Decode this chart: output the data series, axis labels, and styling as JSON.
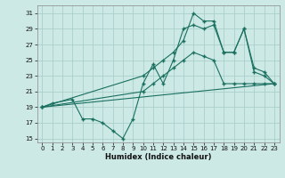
{
  "xlabel": "Humidex (Indice chaleur)",
  "bg_color": "#cce9e5",
  "grid_color": "#aacfcb",
  "line_color": "#1a7060",
  "xlim": [
    -0.5,
    23.5
  ],
  "ylim": [
    14.5,
    32
  ],
  "yticks": [
    15,
    17,
    19,
    21,
    23,
    25,
    27,
    29,
    31
  ],
  "xticks": [
    0,
    1,
    2,
    3,
    4,
    5,
    6,
    7,
    8,
    9,
    10,
    11,
    12,
    13,
    14,
    15,
    16,
    17,
    18,
    19,
    20,
    21,
    22,
    23
  ],
  "series1_x": [
    0,
    1,
    3,
    4,
    5,
    6,
    7,
    8,
    9,
    10,
    11,
    12,
    13,
    14,
    15,
    16,
    17,
    18,
    19,
    20,
    21,
    22,
    23
  ],
  "series1_y": [
    19,
    19.5,
    20,
    17.5,
    17.5,
    17,
    16,
    15,
    17.5,
    22,
    24.5,
    22,
    25,
    29,
    29.5,
    29,
    29.5,
    26,
    26,
    29,
    23.5,
    23,
    22
  ],
  "series2_x": [
    0,
    10,
    11,
    12,
    13,
    14,
    15,
    16,
    17,
    18,
    19,
    20,
    21,
    22,
    23
  ],
  "series2_y": [
    19,
    23,
    24,
    25,
    26,
    27.5,
    31,
    30,
    30,
    26,
    26,
    29,
    24,
    23.5,
    22
  ],
  "series3_x": [
    0,
    10,
    11,
    12,
    13,
    14,
    15,
    16,
    17,
    18,
    19,
    20,
    21,
    22,
    23
  ],
  "series3_y": [
    19,
    21,
    22,
    23,
    24,
    25,
    26,
    25.5,
    25,
    22,
    22,
    22,
    22,
    22,
    22
  ],
  "series4_x": [
    0,
    23
  ],
  "series4_y": [
    19,
    22
  ]
}
